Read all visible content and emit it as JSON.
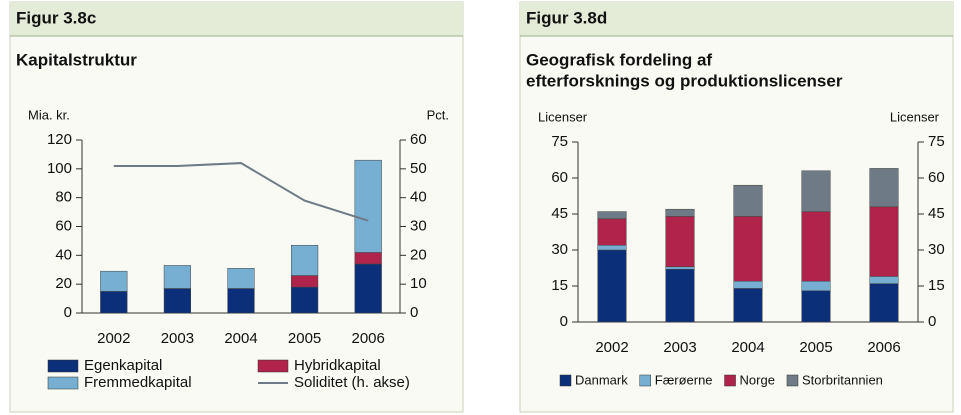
{
  "chart_data": [
    {
      "type": "bar",
      "stacked": true,
      "figure": "Figur 3.8c",
      "title": [
        "Kapitalstruktur"
      ],
      "ylabel": "Mia. kr.",
      "y2label": "Pct.",
      "categories": [
        "2002",
        "2003",
        "2004",
        "2005",
        "2006"
      ],
      "series": [
        {
          "name": "Egenkapital",
          "color": "#0b2f78",
          "values": [
            15,
            17,
            17,
            18,
            34
          ]
        },
        {
          "name": "Hybridkapital",
          "color": "#b0234b",
          "values": [
            0,
            0,
            0,
            8,
            8
          ]
        },
        {
          "name": "Fremmedkapital",
          "color": "#76afd2",
          "values": [
            14,
            16,
            14,
            21,
            64
          ]
        },
        {
          "name": "Soliditet (h. akse)",
          "color": "#6e7a85",
          "type": "line",
          "axis": "y2",
          "values": [
            51,
            51,
            52,
            39,
            32
          ]
        }
      ],
      "ylim": [
        0,
        120
      ],
      "yticks": [
        0,
        20,
        40,
        60,
        80,
        100,
        120
      ],
      "y2lim": [
        0,
        60
      ],
      "y2ticks": [
        0,
        10,
        20,
        30,
        40,
        50,
        60
      ],
      "legend": "bottom-grid"
    },
    {
      "type": "bar",
      "stacked": true,
      "figure": "Figur 3.8d",
      "title": [
        "Geografisk fordeling af",
        "efterforsknings og produktionslicenser"
      ],
      "ylabel": "Licenser",
      "y2label": "Licenser",
      "categories": [
        "2002",
        "2003",
        "2004",
        "2005",
        "2006"
      ],
      "series": [
        {
          "name": "Danmark",
          "color": "#0b2f78",
          "values": [
            30,
            22,
            14,
            13,
            16
          ]
        },
        {
          "name": "Færøerne",
          "color": "#76afd2",
          "values": [
            2,
            1,
            3,
            4,
            3
          ]
        },
        {
          "name": "Norge",
          "color": "#b0234b",
          "values": [
            11,
            21,
            27,
            29,
            29
          ]
        },
        {
          "name": "Storbritannien",
          "color": "#6e7a85",
          "values": [
            3,
            3,
            13,
            17,
            16
          ]
        }
      ],
      "ylim": [
        0,
        75
      ],
      "yticks": [
        0,
        15,
        30,
        45,
        60,
        75
      ],
      "y2lim": [
        0,
        75
      ],
      "y2ticks": [
        0,
        15,
        30,
        45,
        60,
        75
      ],
      "legend": "bottom-row"
    }
  ]
}
